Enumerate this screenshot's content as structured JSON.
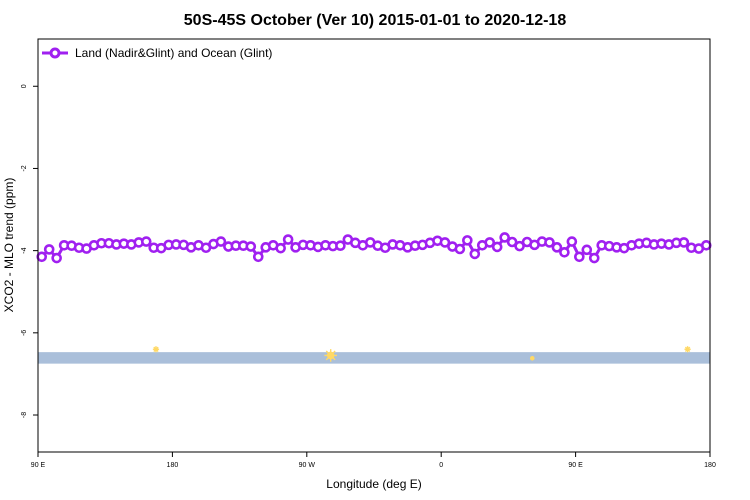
{
  "chart_data": {
    "type": "line",
    "title": "50S-45S October (Ver 10)   2015-01-01 to 2020-12-18",
    "xlabel": "Longitude (deg E)",
    "ylabel": "XCO2 - MLO trend (ppm)",
    "x_ticks": [
      {
        "value": 90,
        "label": "90 E"
      },
      {
        "value": 180,
        "label": "180"
      },
      {
        "value": 270,
        "label": "90 W"
      },
      {
        "value": 360,
        "label": "0"
      },
      {
        "value": 450,
        "label": "90 E"
      },
      {
        "value": 540,
        "label": "180"
      }
    ],
    "y_ticks": [
      {
        "value": 0,
        "label": "0"
      },
      {
        "value": -2,
        "label": "-2"
      },
      {
        "value": -4,
        "label": "-4"
      },
      {
        "value": -6,
        "label": "-6"
      },
      {
        "value": -8,
        "label": "-8"
      }
    ],
    "xlim": [
      90,
      540
    ],
    "ylim": [
      -8.9,
      1.15
    ],
    "grid": false,
    "legend_position": "top-left",
    "series": [
      {
        "name": "Land (Nadir&Glint) and Ocean (Glint)",
        "color": "#a020f0",
        "marker": "open-circle",
        "x": [
          92.5,
          97.5,
          102.5,
          107.5,
          112.5,
          117.5,
          122.5,
          127.5,
          132.5,
          137.5,
          142.5,
          147.5,
          152.5,
          157.5,
          162.5,
          167.5,
          172.5,
          177.5,
          182.5,
          187.5,
          192.5,
          197.5,
          202.5,
          207.5,
          212.5,
          217.5,
          222.5,
          227.5,
          232.5,
          237.5,
          242.5,
          247.5,
          252.5,
          257.5,
          262.5,
          267.5,
          272.5,
          277.5,
          282.5,
          287.5,
          292.5,
          297.5,
          302.5,
          307.5,
          312.5,
          317.5,
          322.5,
          327.5,
          332.5,
          337.5,
          342.5,
          347.5,
          352.5,
          357.5,
          362.5,
          367.5,
          372.5,
          377.5,
          382.5,
          387.5,
          392.5,
          397.5,
          402.5,
          407.5,
          412.5,
          417.5,
          422.5,
          427.5,
          432.5,
          437.5,
          442.5,
          447.5,
          452.5,
          457.5,
          462.5,
          467.5,
          472.5,
          477.5,
          482.5,
          487.5,
          492.5,
          497.5,
          502.5,
          507.5,
          512.5,
          517.5,
          522.5,
          527.5,
          532.5,
          537.5
        ],
        "y": [
          -4.15,
          -3.97,
          -4.18,
          -3.87,
          -3.88,
          -3.93,
          -3.95,
          -3.87,
          -3.82,
          -3.82,
          -3.85,
          -3.83,
          -3.85,
          -3.8,
          -3.78,
          -3.93,
          -3.94,
          -3.86,
          -3.85,
          -3.86,
          -3.92,
          -3.87,
          -3.93,
          -3.84,
          -3.78,
          -3.9,
          -3.88,
          -3.88,
          -3.9,
          -4.15,
          -3.92,
          -3.87,
          -3.94,
          -3.73,
          -3.92,
          -3.86,
          -3.87,
          -3.91,
          -3.87,
          -3.89,
          -3.88,
          -3.73,
          -3.81,
          -3.87,
          -3.8,
          -3.88,
          -3.93,
          -3.85,
          -3.87,
          -3.92,
          -3.88,
          -3.86,
          -3.81,
          -3.76,
          -3.8,
          -3.9,
          -3.96,
          -3.75,
          -4.08,
          -3.87,
          -3.8,
          -3.91,
          -3.68,
          -3.79,
          -3.89,
          -3.79,
          -3.86,
          -3.78,
          -3.8,
          -3.92,
          -4.04,
          -3.78,
          -4.15,
          -3.98,
          -4.18,
          -3.87,
          -3.89,
          -3.92,
          -3.94,
          -3.87,
          -3.83,
          -3.81,
          -3.85,
          -3.83,
          -3.85,
          -3.81,
          -3.8,
          -3.93,
          -3.95,
          -3.87
        ]
      }
    ],
    "land_band": {
      "color": "#aabfda",
      "y_range": [
        -6.75,
        -6.47
      ]
    },
    "land_markers": {
      "color": "#ffd966",
      "points": [
        {
          "x": 169,
          "y": -6.4,
          "size": 1
        },
        {
          "x": 286,
          "y": -6.55,
          "size": 3
        },
        {
          "x": 421,
          "y": -6.62,
          "size": 0.5
        },
        {
          "x": 525,
          "y": -6.4,
          "size": 1
        }
      ]
    }
  }
}
